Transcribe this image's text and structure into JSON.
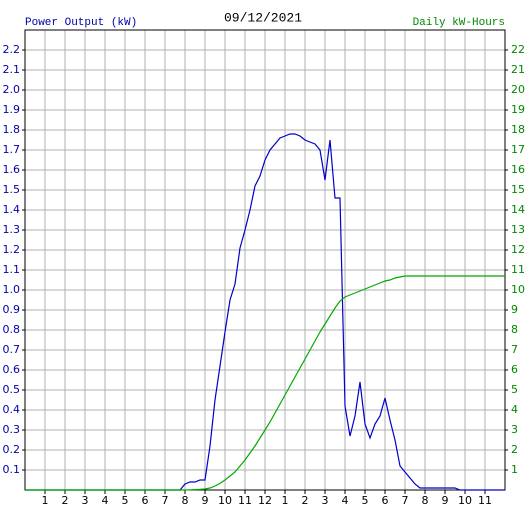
{
  "chart_data": {
    "type": "line",
    "title": "09/12/2021",
    "ylabel": "Power Output (kW)",
    "y2label": "Daily kW-Hours",
    "grid": true,
    "xlim": [
      0,
      24
    ],
    "xticks": [
      1,
      2,
      3,
      4,
      5,
      6,
      7,
      8,
      9,
      10,
      11,
      12,
      {
        "value": 13,
        "label": "1"
      },
      {
        "value": 14,
        "label": "2"
      },
      {
        "value": 15,
        "label": "3"
      },
      {
        "value": 16,
        "label": "4"
      },
      {
        "value": 17,
        "label": "5"
      },
      {
        "value": 18,
        "label": "6"
      },
      {
        "value": 19,
        "label": "7"
      },
      {
        "value": 20,
        "label": "8"
      },
      {
        "value": 21,
        "label": "9"
      },
      {
        "value": 22,
        "label": "10"
      },
      {
        "value": 23,
        "label": "11"
      }
    ],
    "ylim": [
      0,
      2.3
    ],
    "yticks": [
      0.1,
      0.2,
      0.3,
      0.4,
      0.5,
      0.6,
      0.7,
      0.8,
      0.9,
      {
        "value": 1,
        "label": "1.0"
      },
      1.1,
      1.2,
      1.3,
      1.4,
      1.5,
      1.6,
      1.7,
      1.8,
      1.9,
      {
        "value": 2,
        "label": "2.0"
      },
      2.1,
      2.2
    ],
    "y2lim": [
      0,
      23
    ],
    "y2ticks": [
      1,
      2,
      3,
      4,
      5,
      6,
      7,
      8,
      9,
      10,
      11,
      12,
      13,
      14,
      15,
      16,
      17,
      18,
      19,
      20,
      21,
      22
    ],
    "ylabel_color": "#0000aa",
    "y2label_color": "#008800",
    "x": [
      0,
      7.75,
      8,
      8.25,
      8.5,
      8.75,
      9,
      9.25,
      9.5,
      9.75,
      10,
      10.25,
      10.5,
      10.75,
      11,
      11.25,
      11.5,
      11.75,
      12,
      12.25,
      12.5,
      12.75,
      13,
      13.25,
      13.5,
      13.75,
      14,
      14.25,
      14.5,
      14.75,
      15,
      15.25,
      15.5,
      15.75,
      16,
      16.25,
      16.5,
      16.75,
      17,
      17.25,
      17.5,
      17.75,
      18,
      18.25,
      18.5,
      18.75,
      19,
      19.25,
      19.5,
      19.75,
      20,
      20.25,
      20.5,
      20.75,
      21,
      21.25,
      21.5,
      21.75,
      24
    ],
    "series": [
      {
        "name": "Power Output (kW)",
        "color": "#0000cc",
        "values": [
          0,
          0,
          0.03,
          0.04,
          0.04,
          0.05,
          0.05,
          0.22,
          0.45,
          0.62,
          0.79,
          0.95,
          1.03,
          1.21,
          1.3,
          1.4,
          1.52,
          1.57,
          1.65,
          1.7,
          1.73,
          1.76,
          1.77,
          1.78,
          1.78,
          1.77,
          1.75,
          1.74,
          1.73,
          1.7,
          1.55,
          1.75,
          1.46,
          1.46,
          0.42,
          0.27,
          0.37,
          0.54,
          0.33,
          0.26,
          0.33,
          0.37,
          0.46,
          0.35,
          0.25,
          0.12,
          0.09,
          0.06,
          0.03,
          0.01,
          0.01,
          0.01,
          0.01,
          0.01,
          0.01,
          0.01,
          0.01,
          0,
          0
        ]
      },
      {
        "name": "Daily kW-Hours",
        "color": "#00aa00",
        "axis": "y2",
        "values": [
          0,
          0,
          0,
          0.01,
          0.02,
          0.03,
          0.05,
          0.1,
          0.2,
          0.33,
          0.5,
          0.7,
          0.9,
          1.2,
          1.5,
          1.85,
          2.2,
          2.6,
          3.0,
          3.4,
          3.85,
          4.3,
          4.75,
          5.2,
          5.65,
          6.1,
          6.55,
          7.0,
          7.45,
          7.9,
          8.3,
          8.7,
          9.1,
          9.45,
          9.65,
          9.75,
          9.85,
          9.95,
          10.05,
          10.15,
          10.25,
          10.35,
          10.45,
          10.5,
          10.6,
          10.65,
          10.7,
          10.7,
          10.7,
          10.7,
          10.7,
          10.7,
          10.7,
          10.7,
          10.7,
          10.7,
          10.7,
          10.7,
          10.7
        ]
      }
    ]
  }
}
